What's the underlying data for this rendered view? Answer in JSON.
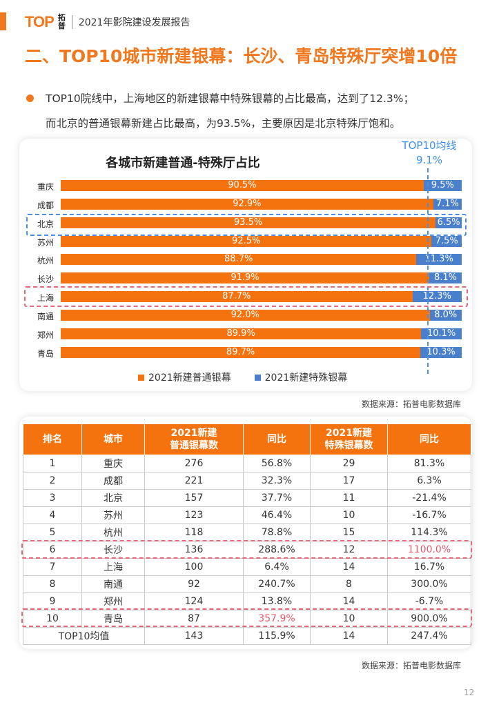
{
  "header": {
    "logo_text": "TOP",
    "logo_cn": "拓普",
    "title": "2021年影院建设发展报告"
  },
  "section_title": "二、TOP10城市新建银幕：长沙、青岛特殊厅突增10倍",
  "paragraph": {
    "line1": "TOP10院线中，上海地区的新建银幕中特殊银幕的占比最高，达到了12.3%；",
    "line2": "而北京的普通银幕新建占比最高，为93.5%，主要原因是北京特殊厅饱和。"
  },
  "chart_data": {
    "type": "bar",
    "stacked": true,
    "orientation": "horizontal",
    "title": "各城市新建普通-特殊厅占比",
    "categories": [
      "重庆",
      "成都",
      "北京",
      "苏州",
      "杭州",
      "长沙",
      "上海",
      "南通",
      "郑州",
      "青岛"
    ],
    "series": [
      {
        "name": "2021新建普通银幕",
        "color": "#f5730f",
        "values": [
          90.5,
          92.9,
          93.5,
          92.5,
          88.7,
          91.9,
          87.7,
          92.0,
          89.9,
          89.7
        ],
        "labels": [
          "90.5%",
          "92.9%",
          "93.5%",
          "92.5%",
          "88.7%",
          "91.9%",
          "87.7%",
          "92.0%",
          "89.9%",
          "89.7%"
        ]
      },
      {
        "name": "2021新建特殊银幕",
        "color": "#4a7fcc",
        "values": [
          9.5,
          7.1,
          6.5,
          7.5,
          11.3,
          8.1,
          12.3,
          8.0,
          10.1,
          10.3
        ],
        "labels": [
          "9.5%",
          "7.1%",
          "6.5%",
          "7.5%",
          "11.3%",
          "8.1%",
          "12.3%",
          "8.0%",
          "10.1%",
          "10.3%"
        ]
      }
    ],
    "xlim": [
      0,
      100
    ],
    "reference_line": {
      "label": "TOP10均线",
      "value_label": "9.1%",
      "value": 9.1
    },
    "highlighted_categories": [
      "北京",
      "上海"
    ],
    "legend_position": "bottom"
  },
  "source_text": "数据来源：拓普电影数据库",
  "table": {
    "headers": [
      "排名",
      "城市",
      "2021新建\n普通银幕数",
      "同比",
      "2021新建\n特殊银幕数",
      "同比"
    ],
    "rows": [
      [
        "1",
        "重庆",
        "276",
        "56.8%",
        "29",
        "81.3%"
      ],
      [
        "2",
        "成都",
        "221",
        "32.3%",
        "17",
        "6.3%"
      ],
      [
        "3",
        "北京",
        "157",
        "37.7%",
        "11",
        "-21.4%"
      ],
      [
        "4",
        "苏州",
        "123",
        "46.4%",
        "10",
        "-16.7%"
      ],
      [
        "5",
        "杭州",
        "118",
        "78.8%",
        "15",
        "114.3%"
      ],
      [
        "6",
        "长沙",
        "136",
        "288.6%",
        "12",
        "1100.0%"
      ],
      [
        "7",
        "上海",
        "100",
        "6.4%",
        "14",
        "16.7%"
      ],
      [
        "8",
        "南通",
        "92",
        "240.7%",
        "8",
        "300.0%"
      ],
      [
        "9",
        "郑州",
        "124",
        "13.8%",
        "14",
        "-6.7%"
      ],
      [
        "10",
        "青岛",
        "87",
        "357.9%",
        "10",
        "900.0%"
      ]
    ],
    "average_row": [
      "TOP10均值",
      "143",
      "115.9%",
      "14",
      "247.4%"
    ],
    "highlight_color": "#e8566a"
  },
  "page_number": "12"
}
